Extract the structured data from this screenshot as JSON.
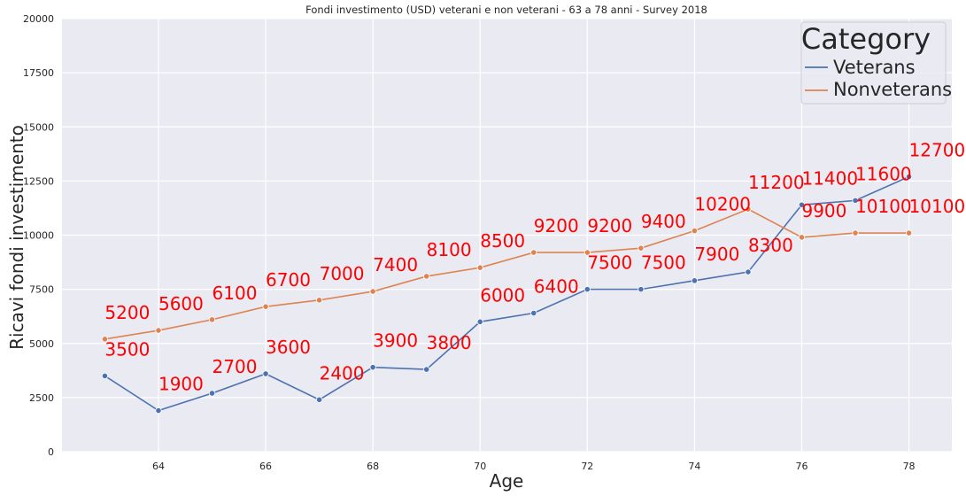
{
  "chart_data": {
    "type": "line",
    "title": "Fondi investimento (USD) veterani e non veterani - 63 a 78 anni - Survey 2018",
    "xlabel": "Age",
    "ylabel": "Ricavi fondi investimento",
    "xlim": [
      62.2,
      78.8
    ],
    "ylim": [
      0,
      20000
    ],
    "xticks": [
      "64",
      "66",
      "68",
      "70",
      "72",
      "74",
      "76",
      "78"
    ],
    "yticks": [
      "0",
      "2500",
      "5000",
      "7500",
      "10000",
      "12500",
      "15000",
      "17500",
      "20000"
    ],
    "grid": true,
    "legend": {
      "title": "Category",
      "position": "top-right"
    },
    "x": [
      63,
      64,
      65,
      66,
      67,
      68,
      69,
      70,
      71,
      72,
      73,
      74,
      75,
      76,
      77,
      78
    ],
    "series": [
      {
        "name": "Veterans",
        "color": "#4c72b0",
        "values": [
          3500,
          1900,
          2700,
          3600,
          2400,
          3900,
          3800,
          6000,
          6400,
          7500,
          7500,
          7900,
          8300,
          11400,
          11600,
          12700
        ]
      },
      {
        "name": "Nonveterans",
        "color": "#dd8452",
        "values": [
          5200,
          5600,
          6100,
          6700,
          7000,
          7400,
          8100,
          8500,
          9200,
          9200,
          9400,
          10200,
          11200,
          9900,
          10100,
          10100
        ]
      }
    ],
    "label_color": "#ff0000"
  }
}
